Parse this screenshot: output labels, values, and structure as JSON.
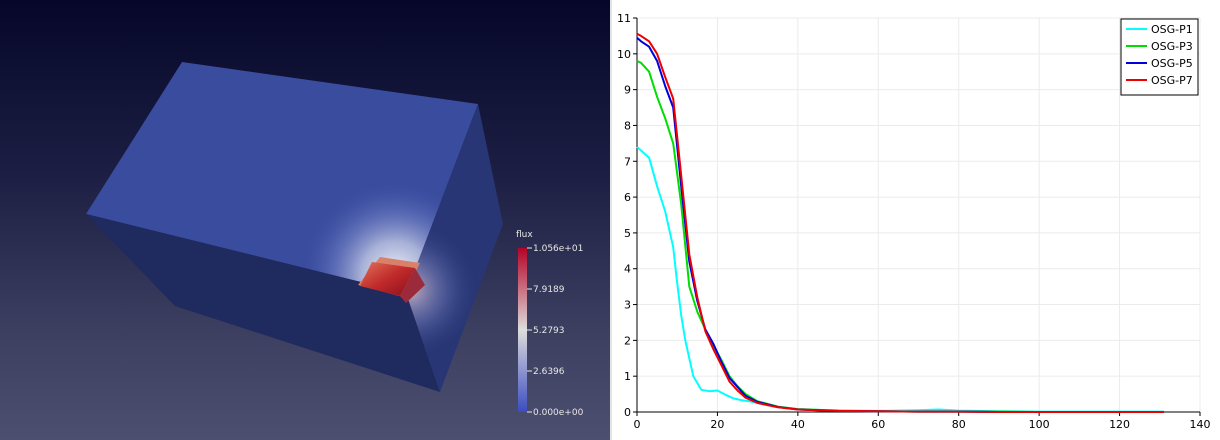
{
  "render_view": {
    "colorbar": {
      "title": "flux",
      "labels": [
        "1.056e+01",
        "7.9189",
        "5.2793",
        "2.6396",
        "0.000e+00"
      ],
      "max": 10.56,
      "min": 0.0,
      "colors": {
        "low": "#3b4cc0",
        "mid": "#dddddd",
        "high": "#b40426"
      }
    },
    "box_colors": {
      "top_face": "#3a4c9e",
      "front_face": "#1f2a5e",
      "side_face": "#283676"
    }
  },
  "chart_data": {
    "type": "line",
    "title": "",
    "xlabel": "",
    "ylabel": "",
    "xlim": [
      0,
      140
    ],
    "ylim": [
      0,
      11
    ],
    "xticks": [
      0,
      20,
      40,
      60,
      80,
      100,
      120,
      140
    ],
    "yticks": [
      0,
      1,
      2,
      3,
      4,
      5,
      6,
      7,
      8,
      9,
      10,
      11
    ],
    "grid": true,
    "legend_position": "top-right",
    "series": [
      {
        "name": "OSG-P1",
        "color": "#00ffff",
        "x": [
          0,
          1,
          3,
          5,
          7,
          9,
          10,
          11,
          12,
          14,
          16,
          18,
          20,
          22,
          24,
          26,
          28,
          30,
          35,
          40,
          50,
          60,
          70,
          75,
          80,
          90,
          100,
          110,
          120,
          131
        ],
        "y": [
          7.4,
          7.3,
          7.1,
          6.3,
          5.6,
          4.6,
          3.6,
          2.7,
          2.0,
          1.0,
          0.62,
          0.58,
          0.6,
          0.48,
          0.38,
          0.33,
          0.3,
          0.25,
          0.14,
          0.08,
          0.04,
          0.03,
          0.05,
          0.07,
          0.04,
          0.02,
          0.01,
          0.01,
          0.01,
          0.01
        ]
      },
      {
        "name": "OSG-P3",
        "color": "#00dd00",
        "x": [
          0,
          1,
          3,
          5,
          7,
          9,
          11,
          13,
          15,
          17,
          19,
          21,
          23,
          25,
          27,
          30,
          35,
          40,
          50,
          60,
          70,
          80,
          90,
          100,
          110,
          120,
          131
        ],
        "y": [
          9.8,
          9.75,
          9.5,
          8.8,
          8.2,
          7.5,
          5.8,
          3.5,
          2.8,
          2.3,
          1.85,
          1.45,
          1.0,
          0.72,
          0.5,
          0.3,
          0.15,
          0.08,
          0.04,
          0.02,
          0.01,
          0.01,
          0.01,
          0.0,
          0.0,
          0.0,
          0.0
        ]
      },
      {
        "name": "OSG-P5",
        "color": "#0000dd",
        "x": [
          0,
          1,
          3,
          5,
          7,
          9,
          11,
          13,
          15,
          17,
          19,
          21,
          23,
          25,
          27,
          30,
          35,
          40,
          50,
          60,
          70,
          80,
          90,
          100,
          110,
          120,
          131
        ],
        "y": [
          10.45,
          10.35,
          10.2,
          9.8,
          9.1,
          8.5,
          6.3,
          4.2,
          3.1,
          2.3,
          1.9,
          1.4,
          0.95,
          0.7,
          0.45,
          0.28,
          0.14,
          0.07,
          0.03,
          0.02,
          0.01,
          0.01,
          0.0,
          0.0,
          0.0,
          0.0,
          0.0
        ]
      },
      {
        "name": "OSG-P7",
        "color": "#ee0000",
        "x": [
          0,
          1,
          3,
          5,
          7,
          9,
          11,
          13,
          15,
          17,
          19,
          21,
          23,
          25,
          27,
          30,
          35,
          40,
          50,
          60,
          70,
          80,
          90,
          100,
          110,
          120,
          131
        ],
        "y": [
          10.56,
          10.5,
          10.35,
          10.0,
          9.35,
          8.75,
          6.6,
          4.4,
          3.2,
          2.25,
          1.75,
          1.3,
          0.85,
          0.6,
          0.4,
          0.25,
          0.13,
          0.07,
          0.03,
          0.02,
          0.01,
          0.01,
          0.0,
          0.0,
          0.0,
          0.0,
          0.0
        ]
      }
    ]
  }
}
